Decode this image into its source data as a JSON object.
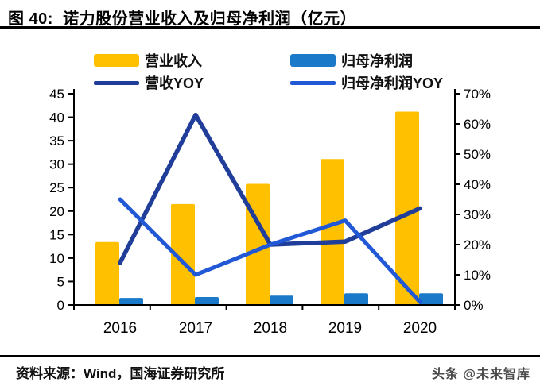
{
  "figure": {
    "title": "图 40:  诺力股份营业收入及归母净利润（亿元）",
    "source": "资料来源：Wind，国海证券研究所",
    "watermark": "头条 @未来智库"
  },
  "chart_data": {
    "type": "bar",
    "subtype": "combo-bar-line-dual-axis",
    "title": "诺力股份营业收入及归母净利润（亿元）",
    "categories": [
      "2016",
      "2017",
      "2018",
      "2019",
      "2020"
    ],
    "bar_series": [
      {
        "name": "营业收入",
        "axis": "left",
        "color": "#FFC000",
        "values": [
          13.4,
          21.5,
          25.8,
          31.1,
          41.2
        ]
      },
      {
        "name": "归母净利润",
        "axis": "left",
        "color": "#1B79C9",
        "values": [
          1.5,
          1.7,
          2.0,
          2.5,
          2.5
        ]
      }
    ],
    "line_series": [
      {
        "name": "营收YOY",
        "axis": "right",
        "color": "#1F3D99",
        "values_pct": [
          14,
          63,
          20,
          21,
          32
        ]
      },
      {
        "name": "归母净利润YOY",
        "axis": "right",
        "color": "#2158D6",
        "values_pct": [
          35,
          10,
          20,
          28,
          1
        ]
      }
    ],
    "left_axis": {
      "min": 0,
      "max": 45,
      "step": 5,
      "unit": "亿元",
      "tick_labels": [
        "45",
        "40",
        "35",
        "30",
        "25",
        "20",
        "15",
        "10",
        "5",
        "0"
      ]
    },
    "right_axis": {
      "min": 0,
      "max": 70,
      "step": 10,
      "unit": "%",
      "tick_labels": [
        "70%",
        "60%",
        "50%",
        "40%",
        "30%",
        "20%",
        "10%",
        "0%"
      ]
    },
    "legend_position": "top",
    "grid": false,
    "plot_background": "#ffffff"
  }
}
